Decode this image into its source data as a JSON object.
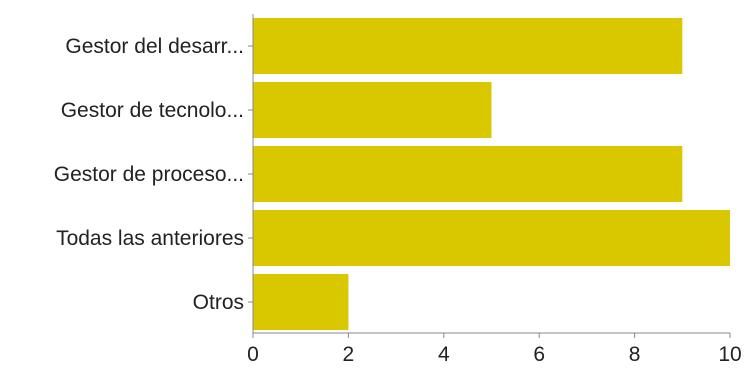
{
  "chart_data": {
    "type": "bar",
    "orientation": "horizontal",
    "categories": [
      "Gestor del desarr...",
      "Gestor de tecnolo...",
      "Gestor de proceso...",
      "Todas las anteriores",
      "Otros"
    ],
    "values": [
      9,
      5,
      9,
      10,
      2
    ],
    "xlim": [
      0,
      10
    ],
    "xticks": [
      0,
      2,
      4,
      6,
      8,
      10
    ],
    "title": "",
    "xlabel": "",
    "ylabel": "",
    "grid": false,
    "legend": "none",
    "colors": {
      "bar": "#d9c800",
      "axis": "#888888",
      "text": "#222222"
    }
  }
}
